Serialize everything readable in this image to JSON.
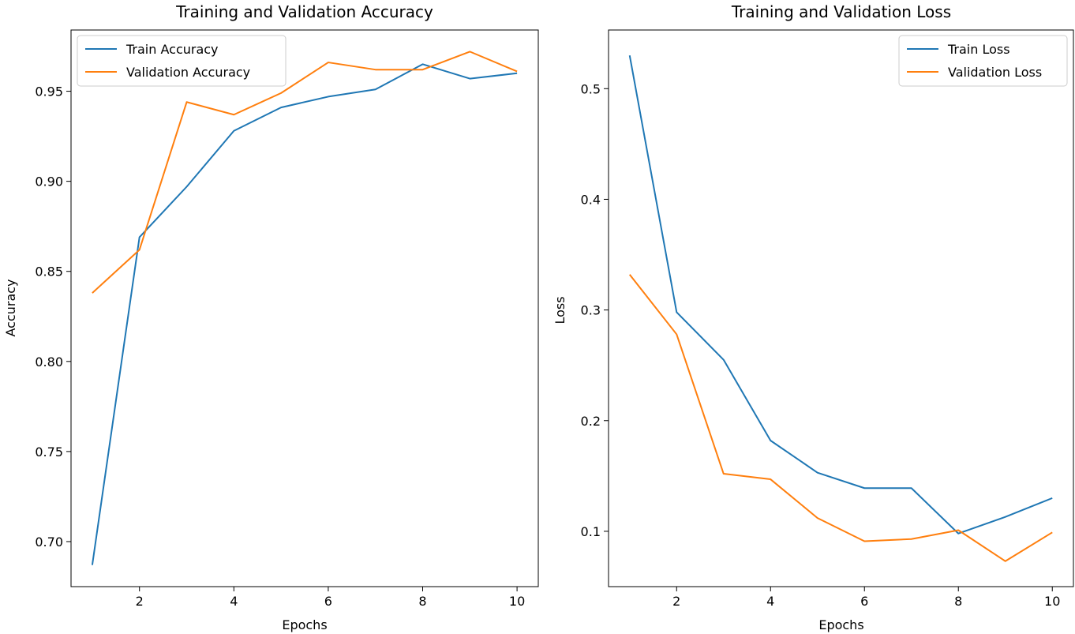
{
  "chart_data": [
    {
      "type": "line",
      "title": "Training and Validation Accuracy",
      "xlabel": "Epochs",
      "ylabel": "Accuracy",
      "x": [
        1,
        2,
        3,
        4,
        5,
        6,
        7,
        8,
        9,
        10
      ],
      "xlim": [
        0.55,
        10.45
      ],
      "ylim": [
        0.675,
        0.984
      ],
      "xticks": [
        2,
        4,
        6,
        8,
        10
      ],
      "xtick_labels": [
        "2",
        "4",
        "6",
        "8",
        "10"
      ],
      "yticks": [
        0.7,
        0.75,
        0.8,
        0.85,
        0.9,
        0.95
      ],
      "ytick_labels": [
        "0.70",
        "0.75",
        "0.80",
        "0.85",
        "0.90",
        "0.95"
      ],
      "grid": false,
      "legend_position": "upper left",
      "series": [
        {
          "name": "Train Accuracy",
          "color": "#1f77b4",
          "values": [
            0.687,
            0.869,
            0.897,
            0.928,
            0.941,
            0.947,
            0.951,
            0.965,
            0.957,
            0.96
          ]
        },
        {
          "name": "Validation Accuracy",
          "color": "#ff7f0e",
          "values": [
            0.838,
            0.862,
            0.944,
            0.937,
            0.949,
            0.966,
            0.962,
            0.962,
            0.972,
            0.961
          ]
        }
      ]
    },
    {
      "type": "line",
      "title": "Training and Validation Loss",
      "xlabel": "Epochs",
      "ylabel": "Loss",
      "x": [
        1,
        2,
        3,
        4,
        5,
        6,
        7,
        8,
        9,
        10
      ],
      "xlim": [
        0.55,
        10.45
      ],
      "ylim": [
        0.05,
        0.553
      ],
      "xticks": [
        2,
        4,
        6,
        8,
        10
      ],
      "xtick_labels": [
        "2",
        "4",
        "6",
        "8",
        "10"
      ],
      "yticks": [
        0.1,
        0.2,
        0.3,
        0.4,
        0.5
      ],
      "ytick_labels": [
        "0.1",
        "0.2",
        "0.3",
        "0.4",
        "0.5"
      ],
      "grid": false,
      "legend_position": "upper right",
      "series": [
        {
          "name": "Train Loss",
          "color": "#1f77b4",
          "values": [
            0.53,
            0.298,
            0.255,
            0.182,
            0.153,
            0.139,
            0.139,
            0.098,
            0.113,
            0.13
          ]
        },
        {
          "name": "Validation Loss",
          "color": "#ff7f0e",
          "values": [
            0.332,
            0.278,
            0.152,
            0.147,
            0.112,
            0.091,
            0.093,
            0.101,
            0.073,
            0.099
          ]
        }
      ]
    }
  ]
}
